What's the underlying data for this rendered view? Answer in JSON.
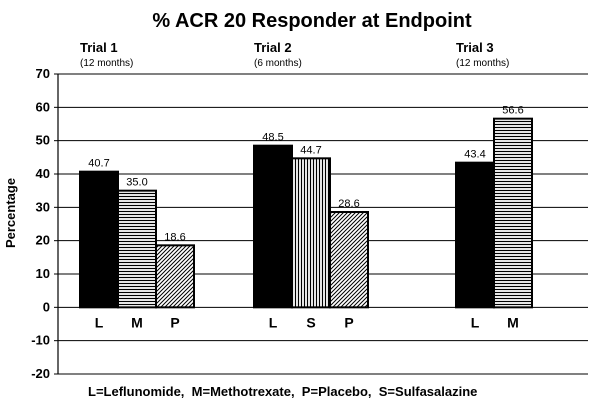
{
  "chart_data": {
    "type": "bar",
    "title": "% ACR 20 Responder at Endpoint",
    "ylabel": "Percentage",
    "ylim": [
      -20,
      70
    ],
    "yticks": [
      -20,
      -10,
      0,
      10,
      20,
      30,
      40,
      50,
      60,
      70
    ],
    "grid": true,
    "legend_text": "L=Leflunomide,  M=Methotrexate,  P=Placebo,  S=Sulfasalazine",
    "groups": [
      {
        "title": "Trial 1",
        "subtitle": "(12 months)",
        "bars": [
          {
            "category": "L",
            "value": 40.7,
            "label": "40.7",
            "pattern": "solid"
          },
          {
            "category": "M",
            "value": 35.0,
            "label": "35.0",
            "pattern": "horizontal"
          },
          {
            "category": "P",
            "value": 18.6,
            "label": "18.6",
            "pattern": "diagonal"
          }
        ]
      },
      {
        "title": "Trial 2",
        "subtitle": "(6 months)",
        "bars": [
          {
            "category": "L",
            "value": 48.5,
            "label": "48.5",
            "pattern": "solid"
          },
          {
            "category": "S",
            "value": 44.7,
            "label": "44.7",
            "pattern": "vertical"
          },
          {
            "category": "P",
            "value": 28.6,
            "label": "28.6",
            "pattern": "diagonal"
          }
        ]
      },
      {
        "title": "Trial 3",
        "subtitle": "(12 months)",
        "bars": [
          {
            "category": "L",
            "value": 43.4,
            "label": "43.4",
            "pattern": "solid"
          },
          {
            "category": "M",
            "value": 56.6,
            "label": "56.6",
            "pattern": "horizontal"
          }
        ]
      }
    ]
  }
}
